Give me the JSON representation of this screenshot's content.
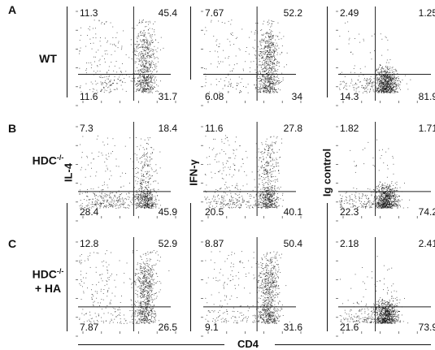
{
  "rows": [
    {
      "letter": "A",
      "label": "WT",
      "label_sup": "",
      "label_line2": ""
    },
    {
      "letter": "B",
      "label": "HDC",
      "label_sup": "-/-",
      "label_line2": ""
    },
    {
      "letter": "C",
      "label": "HDC",
      "label_sup": "-/-",
      "label_line2": "+ HA"
    }
  ],
  "y_labels": {
    "il4": "IL-4",
    "ifng": "IFN-γ",
    "ig": "Ig control"
  },
  "x_label": "CD4",
  "chart_data": [
    {
      "type": "scatter",
      "panel": "A-IL-4",
      "quadrants": {
        "upper_left": "11.3",
        "upper_right": "45.4",
        "lower_left": "11.6",
        "lower_right": "31.7"
      }
    },
    {
      "type": "scatter",
      "panel": "A-IFN-γ",
      "quadrants": {
        "upper_left": "7.67",
        "upper_right": "52.2",
        "lower_left": "6.08",
        "lower_right": "34"
      }
    },
    {
      "type": "scatter",
      "panel": "A-Ig control",
      "quadrants": {
        "upper_left": "2.49",
        "upper_right": "1.25",
        "lower_left": "14.3",
        "lower_right": "81.9"
      }
    },
    {
      "type": "scatter",
      "panel": "B-IL-4",
      "quadrants": {
        "upper_left": "7.3",
        "upper_right": "18.4",
        "lower_left": "28.4",
        "lower_right": "45.9"
      }
    },
    {
      "type": "scatter",
      "panel": "B-IFN-γ",
      "quadrants": {
        "upper_left": "11.6",
        "upper_right": "27.8",
        "lower_left": "20.5",
        "lower_right": "40.1"
      }
    },
    {
      "type": "scatter",
      "panel": "B-Ig control",
      "quadrants": {
        "upper_left": "1.82",
        "upper_right": "1.71",
        "lower_left": "22.3",
        "lower_right": "74.2"
      }
    },
    {
      "type": "scatter",
      "panel": "C-IL-4",
      "quadrants": {
        "upper_left": "12.8",
        "upper_right": "52.9",
        "lower_left": "7.87",
        "lower_right": "26.5"
      }
    },
    {
      "type": "scatter",
      "panel": "C-IFN-γ",
      "quadrants": {
        "upper_left": "8.87",
        "upper_right": "50.4",
        "lower_left": "9.1",
        "lower_right": "31.6"
      }
    },
    {
      "type": "scatter",
      "panel": "C-Ig control",
      "quadrants": {
        "upper_left": "2.18",
        "upper_right": "2.41",
        "lower_left": "21.6",
        "lower_right": "73.9"
      }
    }
  ]
}
